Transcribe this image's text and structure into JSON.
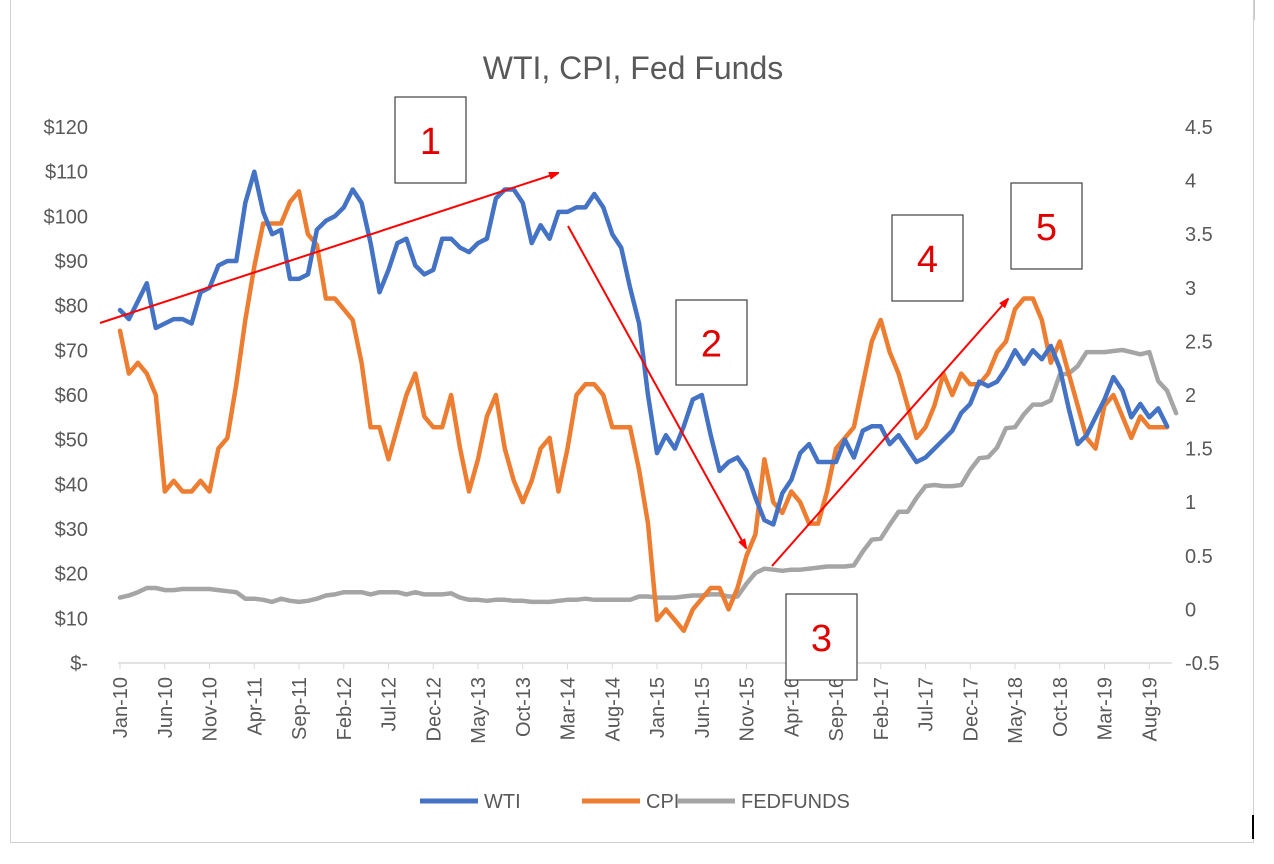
{
  "chart_data": {
    "type": "line",
    "title": "WTI, CPI, Fed Funds",
    "x_tick_labels": [
      "Jan-10",
      "Jun-10",
      "Nov-10",
      "Apr-11",
      "Sep-11",
      "Feb-12",
      "Jul-12",
      "Dec-12",
      "May-13",
      "Oct-13",
      "Mar-14",
      "Aug-14",
      "Jan-15",
      "Jun-15",
      "Nov-15",
      "Apr-16",
      "Sep-16",
      "Feb-17",
      "Jul-17",
      "Dec-17",
      "May-18",
      "Oct-18",
      "Mar-19",
      "Aug-19"
    ],
    "y_left": {
      "ticks": [
        "$120",
        "$110",
        "$100",
        "$90",
        "$80",
        "$70",
        "$60",
        "$50",
        "$40",
        "$30",
        "$20",
        "$10",
        "$-"
      ],
      "ylim": [
        0,
        120
      ]
    },
    "y_right": {
      "ticks": [
        "4.5",
        "4",
        "3.5",
        "3",
        "2.5",
        "2",
        "1.5",
        "1",
        "0.5",
        "0",
        "-0.5"
      ],
      "ylim": [
        -0.5,
        4.5
      ]
    },
    "series": [
      {
        "name": "WTI",
        "axis": "left",
        "color": "#4472C4",
        "values": [
          79,
          77,
          81,
          85,
          75,
          76,
          77,
          77,
          76,
          83,
          84,
          89,
          90,
          90,
          103,
          110,
          101,
          96,
          97,
          86,
          86,
          87,
          97,
          99,
          100,
          102,
          106,
          103,
          94,
          83,
          88,
          94,
          95,
          89,
          87,
          88,
          95,
          95,
          93,
          92,
          94,
          95,
          104,
          106,
          106,
          103,
          94,
          98,
          95,
          101,
          101,
          102,
          102,
          105,
          102,
          96,
          93,
          84,
          76,
          60,
          47,
          51,
          48,
          53,
          59,
          60,
          51,
          43,
          45,
          46,
          43,
          37,
          32,
          31,
          38,
          41,
          47,
          49,
          45,
          45,
          45,
          50,
          46,
          52,
          53,
          53,
          49,
          51,
          48,
          45,
          46,
          48,
          50,
          52,
          56,
          58,
          63,
          62,
          63,
          66,
          70,
          67,
          70,
          68,
          71,
          66,
          57,
          49,
          51,
          55,
          59,
          64,
          61,
          55,
          58,
          55,
          57,
          53
        ],
        "x_start": "Jan-10"
      },
      {
        "name": "CPI",
        "axis": "right",
        "color": "#ED7D31",
        "values": [
          2.6,
          2.2,
          2.3,
          2.2,
          2.0,
          1.1,
          1.2,
          1.1,
          1.1,
          1.2,
          1.1,
          1.5,
          1.6,
          2.1,
          2.7,
          3.2,
          3.6,
          3.6,
          3.6,
          3.8,
          3.9,
          3.5,
          3.4,
          2.9,
          2.9,
          2.8,
          2.7,
          2.3,
          1.7,
          1.7,
          1.4,
          1.7,
          2.0,
          2.2,
          1.8,
          1.7,
          1.7,
          2.0,
          1.5,
          1.1,
          1.4,
          1.8,
          2.0,
          1.5,
          1.2,
          1.0,
          1.2,
          1.5,
          1.6,
          1.1,
          1.5,
          2.0,
          2.1,
          2.1,
          2.0,
          1.7,
          1.7,
          1.7,
          1.3,
          0.8,
          -0.1,
          0.0,
          -0.1,
          -0.2,
          0.0,
          0.1,
          0.2,
          0.2,
          0.0,
          0.2,
          0.5,
          0.7,
          1.4,
          1.0,
          0.9,
          1.1,
          1.0,
          0.8,
          0.8,
          1.1,
          1.5,
          1.6,
          1.7,
          2.1,
          2.5,
          2.7,
          2.4,
          2.2,
          1.9,
          1.6,
          1.7,
          1.9,
          2.2,
          2.0,
          2.2,
          2.1,
          2.1,
          2.2,
          2.4,
          2.5,
          2.8,
          2.9,
          2.9,
          2.7,
          2.3,
          2.5,
          2.2,
          1.9,
          1.6,
          1.5,
          1.9,
          2.0,
          1.8,
          1.6,
          1.8,
          1.7,
          1.7,
          1.7
        ],
        "x_start": "Jan-10"
      },
      {
        "name": "FEDFUNDS",
        "axis": "right",
        "color": "#A5A5A5",
        "values": [
          0.11,
          0.13,
          0.16,
          0.2,
          0.2,
          0.18,
          0.18,
          0.19,
          0.19,
          0.19,
          0.19,
          0.18,
          0.17,
          0.16,
          0.1,
          0.1,
          0.09,
          0.07,
          0.1,
          0.08,
          0.07,
          0.08,
          0.1,
          0.13,
          0.14,
          0.16,
          0.16,
          0.16,
          0.14,
          0.16,
          0.16,
          0.16,
          0.14,
          0.16,
          0.14,
          0.14,
          0.14,
          0.15,
          0.11,
          0.09,
          0.09,
          0.08,
          0.09,
          0.09,
          0.08,
          0.08,
          0.07,
          0.07,
          0.07,
          0.08,
          0.09,
          0.09,
          0.1,
          0.09,
          0.09,
          0.09,
          0.09,
          0.09,
          0.12,
          0.12,
          0.11,
          0.11,
          0.11,
          0.12,
          0.13,
          0.13,
          0.14,
          0.14,
          0.12,
          0.12,
          0.24,
          0.34,
          0.38,
          0.37,
          0.36,
          0.37,
          0.37,
          0.38,
          0.39,
          0.4,
          0.4,
          0.4,
          0.41,
          0.54,
          0.65,
          0.66,
          0.79,
          0.91,
          0.91,
          1.04,
          1.15,
          1.16,
          1.15,
          1.15,
          1.16,
          1.3,
          1.41,
          1.42,
          1.51,
          1.69,
          1.7,
          1.82,
          1.91,
          1.91,
          1.95,
          2.19,
          2.2,
          2.27,
          2.4,
          2.4,
          2.4,
          2.41,
          2.42,
          2.4,
          2.38,
          2.4,
          2.13,
          2.04,
          1.83
        ],
        "x_start": "Jan-10"
      }
    ],
    "legend": {
      "position": "bottom",
      "entries": [
        "WTI",
        "CPI",
        "FEDFUNDS"
      ]
    },
    "grid": false
  },
  "annotations": {
    "boxes": [
      {
        "label": "1"
      },
      {
        "label": "2"
      },
      {
        "label": "3"
      },
      {
        "label": "4"
      },
      {
        "label": "5"
      }
    ],
    "arrow_color": "#FF0000"
  }
}
